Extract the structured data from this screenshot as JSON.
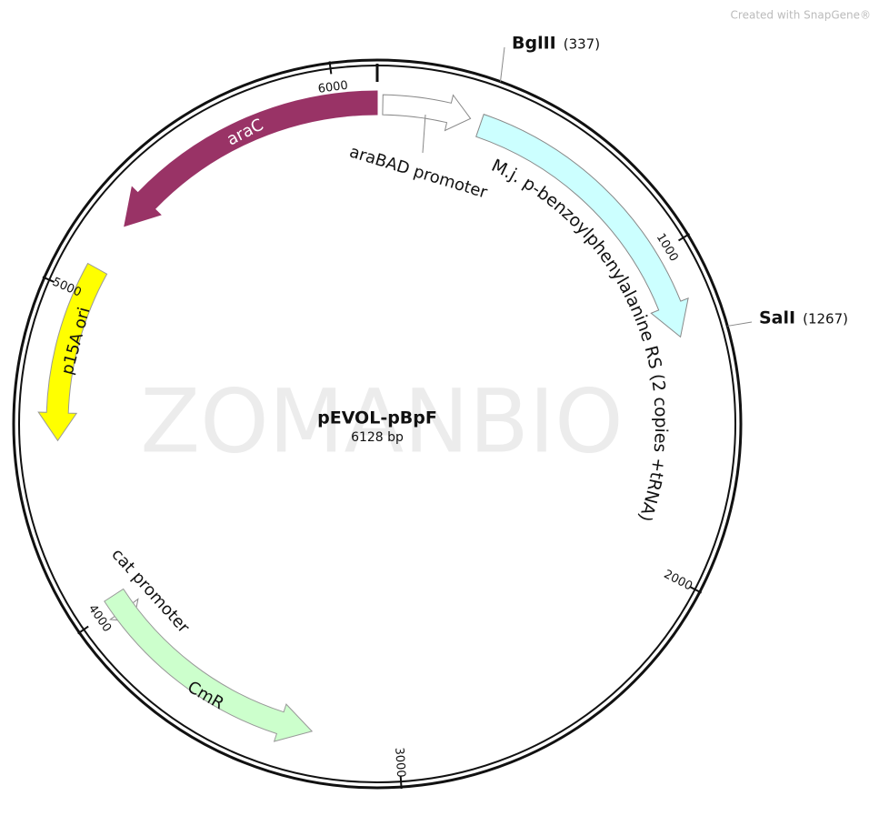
{
  "header": {
    "credit": "Created with SnapGene®",
    "watermark": "ZOMANBIO"
  },
  "plasmid": {
    "name": "pEVOL-pBpF",
    "length": "6128 bp"
  },
  "sites": [
    {
      "name": "BglII",
      "position": "(337)"
    },
    {
      "name": "SalI",
      "position": "(1267)"
    }
  ],
  "ticks": [
    "1000",
    "2000",
    "3000",
    "4000",
    "5000",
    "6000"
  ],
  "features": [
    {
      "label": "araC"
    },
    {
      "label": "araBAD promoter"
    },
    {
      "label": "M.j. p-benzoylphenylalanine RS (2 copies +tRNA)"
    },
    {
      "label": "p15A ori"
    },
    {
      "label": "cat promoter"
    },
    {
      "label": "CmR"
    }
  ]
}
